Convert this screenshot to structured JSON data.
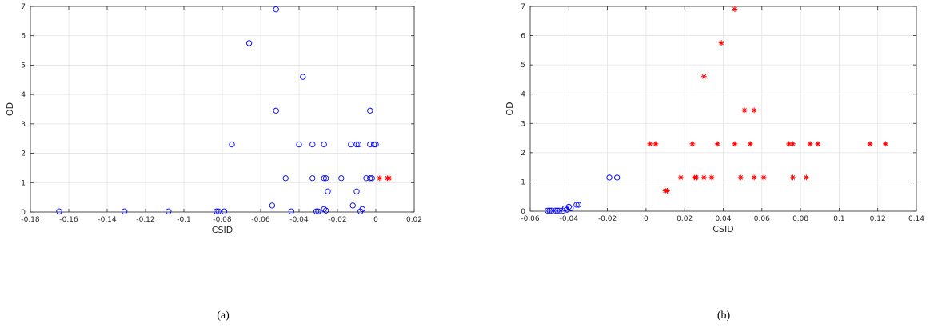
{
  "chart_data": [
    {
      "type": "scatter",
      "caption": "(a)",
      "xlabel": "CSID",
      "ylabel": "OD",
      "xlim": [
        -0.18,
        0.02
      ],
      "ylim": [
        0,
        7
      ],
      "xticks": [
        -0.18,
        -0.16,
        -0.14,
        -0.12,
        -0.1,
        -0.08,
        -0.06,
        -0.04,
        -0.02,
        0,
        0.02
      ],
      "xtick_labels": [
        "-0.18",
        "-0.16",
        "-0.14",
        "-0.12",
        "-0.1",
        "-0.08",
        "-0.06",
        "-0.04",
        "-0.02",
        "0",
        "0.02"
      ],
      "yticks": [
        0,
        1,
        2,
        3,
        4,
        5,
        6,
        7
      ],
      "ytick_labels": [
        "0",
        "1",
        "2",
        "3",
        "4",
        "5",
        "6",
        "7"
      ],
      "grid": true,
      "series": [
        {
          "marker": "circle",
          "color": "#0000ff",
          "points": [
            [
              -0.165,
              0.02
            ],
            [
              -0.131,
              0.02
            ],
            [
              -0.108,
              0.02
            ],
            [
              -0.083,
              0.02
            ],
            [
              -0.082,
              0.02
            ],
            [
              -0.079,
              0.02
            ],
            [
              -0.075,
              2.3
            ],
            [
              -0.066,
              5.75
            ],
            [
              -0.054,
              0.22
            ],
            [
              -0.052,
              6.9
            ],
            [
              -0.052,
              3.45
            ],
            [
              -0.047,
              1.15
            ],
            [
              -0.044,
              0.02
            ],
            [
              -0.04,
              2.3
            ],
            [
              -0.038,
              4.6
            ],
            [
              -0.033,
              2.3
            ],
            [
              -0.033,
              1.15
            ],
            [
              -0.031,
              0.02
            ],
            [
              -0.03,
              0.02
            ],
            [
              -0.027,
              2.3
            ],
            [
              -0.027,
              1.15
            ],
            [
              -0.026,
              1.15
            ],
            [
              -0.027,
              0.1
            ],
            [
              -0.026,
              0.05
            ],
            [
              -0.025,
              0.7
            ],
            [
              -0.018,
              1.15
            ],
            [
              -0.013,
              2.3
            ],
            [
              -0.012,
              0.22
            ],
            [
              -0.01,
              2.3
            ],
            [
              -0.01,
              0.7
            ],
            [
              -0.009,
              2.3
            ],
            [
              -0.008,
              0.02
            ],
            [
              -0.007,
              0.1
            ],
            [
              -0.005,
              1.15
            ],
            [
              -0.003,
              1.15
            ],
            [
              -0.003,
              2.3
            ],
            [
              -0.003,
              3.45
            ],
            [
              -0.002,
              1.15
            ],
            [
              0.0,
              2.3
            ],
            [
              -0.001,
              2.3
            ]
          ]
        },
        {
          "marker": "asterisk",
          "color": "#ff0000",
          "points": [
            [
              0.002,
              1.15
            ],
            [
              0.006,
              1.15
            ],
            [
              0.007,
              1.15
            ]
          ]
        }
      ]
    },
    {
      "type": "scatter",
      "caption": "(b)",
      "xlabel": "CSID",
      "ylabel": "OD",
      "xlim": [
        -0.06,
        0.14
      ],
      "ylim": [
        0,
        7
      ],
      "xticks": [
        -0.06,
        -0.04,
        -0.02,
        0,
        0.02,
        0.04,
        0.06,
        0.08,
        0.1,
        0.12,
        0.14
      ],
      "xtick_labels": [
        "-0.06",
        "-0.04",
        "-0.02",
        "0",
        "0.02",
        "0.04",
        "0.06",
        "0.08",
        "0.1",
        "0.12",
        "0.14"
      ],
      "yticks": [
        0,
        1,
        2,
        3,
        4,
        5,
        6,
        7
      ],
      "ytick_labels": [
        "0",
        "1",
        "2",
        "3",
        "4",
        "5",
        "6",
        "7"
      ],
      "grid": true,
      "series": [
        {
          "marker": "circle",
          "color": "#0000ff",
          "points": [
            [
              -0.051,
              0.02
            ],
            [
              -0.05,
              0.02
            ],
            [
              -0.049,
              0.02
            ],
            [
              -0.047,
              0.02
            ],
            [
              -0.046,
              0.02
            ],
            [
              -0.045,
              0.02
            ],
            [
              -0.043,
              0.02
            ],
            [
              -0.042,
              0.1
            ],
            [
              -0.041,
              0.05
            ],
            [
              -0.04,
              0.15
            ],
            [
              -0.039,
              0.1
            ],
            [
              -0.036,
              0.22
            ],
            [
              -0.035,
              0.22
            ],
            [
              -0.019,
              1.15
            ],
            [
              -0.015,
              1.15
            ]
          ]
        },
        {
          "marker": "asterisk",
          "color": "#ff0000",
          "points": [
            [
              0.002,
              2.3
            ],
            [
              0.005,
              2.3
            ],
            [
              0.01,
              0.7
            ],
            [
              0.011,
              0.7
            ],
            [
              0.018,
              1.15
            ],
            [
              0.024,
              2.3
            ],
            [
              0.025,
              1.15
            ],
            [
              0.026,
              1.15
            ],
            [
              0.03,
              4.6
            ],
            [
              0.03,
              1.15
            ],
            [
              0.034,
              1.15
            ],
            [
              0.037,
              2.3
            ],
            [
              0.039,
              5.75
            ],
            [
              0.046,
              6.9
            ],
            [
              0.046,
              2.3
            ],
            [
              0.049,
              1.15
            ],
            [
              0.051,
              3.45
            ],
            [
              0.054,
              2.3
            ],
            [
              0.056,
              3.45
            ],
            [
              0.056,
              1.15
            ],
            [
              0.061,
              1.15
            ],
            [
              0.074,
              2.3
            ],
            [
              0.076,
              2.3
            ],
            [
              0.076,
              1.15
            ],
            [
              0.083,
              1.15
            ],
            [
              0.085,
              2.3
            ],
            [
              0.089,
              2.3
            ],
            [
              0.116,
              2.3
            ],
            [
              0.124,
              2.3
            ]
          ]
        }
      ]
    }
  ]
}
